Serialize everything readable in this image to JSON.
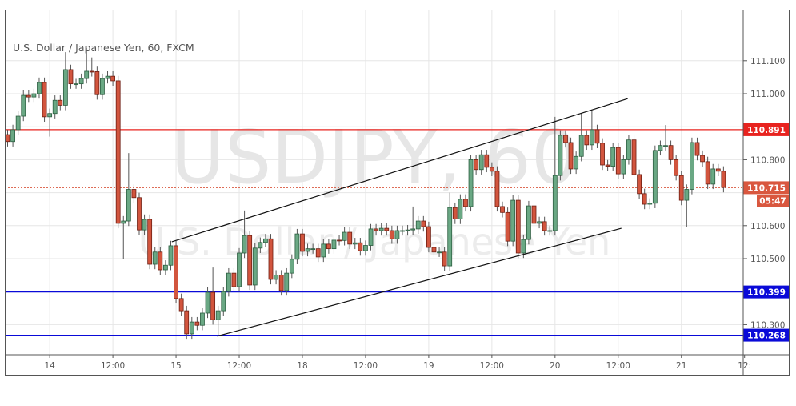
{
  "chart_data": {
    "type": "candlestick",
    "title": "U.S. Dollar / Japanese Yen, 60, FXCM",
    "watermark": {
      "symbol": "USDJPY, 60",
      "name": "U.S. Dollar / Japanese Yen"
    },
    "ylim": [
      110.22,
      111.24
    ],
    "y_ticks": [
      "111.100",
      "111.000",
      "110.800",
      "110.600",
      "110.500",
      "110.300"
    ],
    "y_grid": [
      111.1,
      111.0,
      110.9,
      110.8,
      110.7,
      110.6,
      110.5,
      110.4,
      110.3
    ],
    "x_ticks": [
      {
        "label": "14",
        "index": 8
      },
      {
        "label": "12:00",
        "index": 20
      },
      {
        "label": "15",
        "index": 32
      },
      {
        "label": "12:00",
        "index": 44
      },
      {
        "label": "18",
        "index": 56
      },
      {
        "label": "12:00",
        "index": 68
      },
      {
        "label": "19",
        "index": 80
      },
      {
        "label": "12:00",
        "index": 92
      },
      {
        "label": "20",
        "index": 104
      },
      {
        "label": "12:00",
        "index": 116
      },
      {
        "label": "21",
        "index": 128
      },
      {
        "label": "12:",
        "index": 140
      }
    ],
    "grid": true,
    "first_open": 110.876,
    "close": [
      110.855,
      110.891,
      110.932,
      110.995,
      110.99,
      111.0,
      111.034,
      110.93,
      110.94,
      110.98,
      110.965,
      111.073,
      111.03,
      111.03,
      111.046,
      111.068,
      111.067,
      110.997,
      111.046,
      111.053,
      111.039,
      110.607,
      110.614,
      110.71,
      110.685,
      110.587,
      110.619,
      110.483,
      110.52,
      110.466,
      110.48,
      110.539,
      110.379,
      110.342,
      110.272,
      110.308,
      110.298,
      110.335,
      110.398,
      110.315,
      110.342,
      110.4,
      110.456,
      110.415,
      110.517,
      110.57,
      110.42,
      110.532,
      110.549,
      110.56,
      110.437,
      110.45,
      110.403,
      110.456,
      110.498,
      110.575,
      110.522,
      110.53,
      110.53,
      110.505,
      110.544,
      110.53,
      110.556,
      110.555,
      110.58,
      110.544,
      110.548,
      110.524,
      110.54,
      110.59,
      110.585,
      110.592,
      110.585,
      110.56,
      110.585,
      110.585,
      110.587,
      110.59,
      110.614,
      110.597,
      110.534,
      110.52,
      110.52,
      110.478,
      110.655,
      110.62,
      110.68,
      110.658,
      110.8,
      110.77,
      110.815,
      110.777,
      110.765,
      110.658,
      110.64,
      110.553,
      110.677,
      110.517,
      110.558,
      110.66,
      110.607,
      110.612,
      110.585,
      110.585,
      110.752,
      110.874,
      110.852,
      110.772,
      110.81,
      110.874,
      110.845,
      110.891,
      110.85,
      110.784,
      110.78,
      110.837,
      110.757,
      110.8,
      110.86,
      110.755,
      110.697,
      110.665,
      110.668,
      110.828,
      110.843,
      110.843,
      110.8,
      110.752,
      110.677,
      110.71,
      110.852,
      110.813,
      110.794,
      110.726,
      110.772,
      110.765,
      110.716
    ],
    "notable_highs": {
      "11": 111.126,
      "15": 111.14,
      "16": 111.11,
      "23": 110.82,
      "39": 110.473,
      "45": 110.646,
      "77": 110.658,
      "84": 110.7,
      "104": 110.93,
      "109": 110.94,
      "111": 110.95,
      "125": 110.905
    },
    "notable_lows": {
      "8": 110.87,
      "22": 110.5,
      "40": 110.265,
      "129": 110.595
    },
    "horizontal_lines": [
      {
        "price": 110.891,
        "label": "110.891",
        "color": "#e8231f"
      },
      {
        "price": 110.399,
        "label": "110.399",
        "color": "#0a0ad8"
      },
      {
        "price": 110.268,
        "label": "110.268",
        "color": "#0a0ad8"
      }
    ],
    "last_price": {
      "price": 110.715,
      "label": "110.715",
      "countdown": "05:47",
      "color": "#d9573f"
    },
    "trend_lines": [
      {
        "from": {
          "index": 31.2,
          "price": 110.551
        },
        "to": {
          "index": 117.8,
          "price": 110.985
        }
      },
      {
        "from": {
          "index": 39.8,
          "price": 110.265
        },
        "to": {
          "index": 116.6,
          "price": 110.592
        }
      }
    ],
    "colors": {
      "up": "#6aa884",
      "up_border": "#2c5e40",
      "down": "#d2553e",
      "down_border": "#6e1e12",
      "wick": "#555555"
    }
  }
}
